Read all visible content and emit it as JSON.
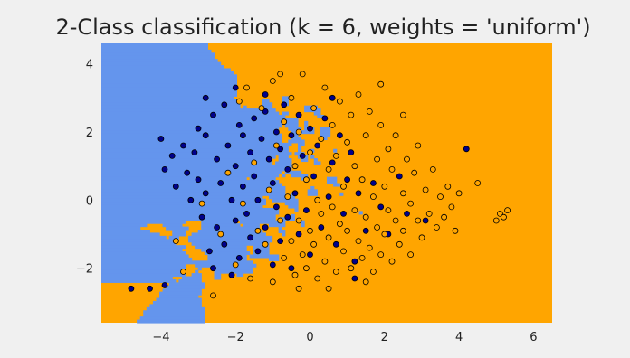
{
  "chart_data": {
    "type": "scatter",
    "title": "2-Class classification (k = 6, weights = 'uniform')",
    "xlabel": "",
    "ylabel": "",
    "xlim": [
      -5.6,
      6.5
    ],
    "ylim": [
      -3.6,
      4.6
    ],
    "xticks": [
      "−4",
      "−2",
      "0",
      "2",
      "4",
      "6"
    ],
    "xtick_values": [
      -4,
      -2,
      0,
      2,
      4,
      6
    ],
    "yticks": [
      "4",
      "2",
      "0",
      "−2"
    ],
    "ytick_values": [
      4,
      2,
      0,
      -2
    ],
    "grid": false,
    "background": "decision regions (k-nearest neighbors)",
    "colors": {
      "figure_bg": "#f0f0f0",
      "class_0_region": "#6495ed",
      "class_1_region": "#ffa500",
      "class_0_points": "#00008b",
      "class_1_points": "#ffa500",
      "point_edge": "#000000"
    },
    "series": [
      {
        "color": "#00008b",
        "points": [
          [
            -4.8,
            -2.6
          ],
          [
            -4.3,
            -2.6
          ],
          [
            -3.9,
            -2.5
          ],
          [
            -4.0,
            1.8
          ],
          [
            -3.9,
            0.9
          ],
          [
            -3.7,
            1.3
          ],
          [
            -3.6,
            0.4
          ],
          [
            -3.4,
            1.6
          ],
          [
            -3.3,
            0.8
          ],
          [
            -3.2,
            0.0
          ],
          [
            -3.1,
            1.4
          ],
          [
            -3.0,
            2.1
          ],
          [
            -3.0,
            0.6
          ],
          [
            -2.9,
            -0.5
          ],
          [
            -2.8,
            1.9
          ],
          [
            -2.8,
            0.2
          ],
          [
            -2.7,
            -1.5
          ],
          [
            -2.6,
            -2.0
          ],
          [
            -2.6,
            2.5
          ],
          [
            -2.5,
            1.2
          ],
          [
            -2.5,
            -0.8
          ],
          [
            -2.4,
            0.5
          ],
          [
            -2.3,
            -1.3
          ],
          [
            -2.3,
            2.8
          ],
          [
            -2.2,
            1.6
          ],
          [
            -2.1,
            0.0
          ],
          [
            -2.1,
            -2.2
          ],
          [
            -2.0,
            1.0
          ],
          [
            -2.0,
            -0.6
          ],
          [
            -1.9,
            2.2
          ],
          [
            -1.9,
            -1.7
          ],
          [
            -1.8,
            0.4
          ],
          [
            -1.8,
            1.9
          ],
          [
            -1.7,
            -0.4
          ],
          [
            -1.6,
            -1.1
          ],
          [
            -1.6,
            1.4
          ],
          [
            -1.5,
            2.4
          ],
          [
            -1.5,
            0.7
          ],
          [
            -1.4,
            -1.5
          ],
          [
            -1.4,
            0.0
          ],
          [
            -1.3,
            1.8
          ],
          [
            -1.2,
            -0.8
          ],
          [
            -1.2,
            2.6
          ],
          [
            -1.1,
            1.2
          ],
          [
            -1.0,
            -1.9
          ],
          [
            -1.0,
            0.5
          ],
          [
            -0.9,
            2.0
          ],
          [
            -0.9,
            -0.2
          ],
          [
            -0.8,
            -1.2
          ],
          [
            -0.8,
            1.5
          ],
          [
            -0.7,
            2.8
          ],
          [
            -0.6,
            -0.5
          ],
          [
            -0.6,
            0.9
          ],
          [
            -0.5,
            -2.0
          ],
          [
            -0.5,
            1.9
          ],
          [
            -0.4,
            0.2
          ],
          [
            -0.3,
            2.5
          ],
          [
            -0.3,
            -1.0
          ],
          [
            -0.2,
            1.3
          ],
          [
            -0.1,
            -0.3
          ],
          [
            0.0,
            2.1
          ],
          [
            0.0,
            -1.6
          ],
          [
            0.1,
            0.7
          ],
          [
            0.2,
            1.6
          ],
          [
            0.3,
            -0.8
          ],
          [
            0.4,
            2.4
          ],
          [
            0.5,
            0.1
          ],
          [
            0.6,
            1.1
          ],
          [
            0.7,
            -1.3
          ],
          [
            0.8,
            1.9
          ],
          [
            0.9,
            -0.4
          ],
          [
            1.0,
            0.6
          ],
          [
            1.1,
            1.4
          ],
          [
            1.2,
            -1.8
          ],
          [
            1.3,
            0.2
          ],
          [
            1.5,
            -0.9
          ],
          [
            1.7,
            0.5
          ],
          [
            1.9,
            -0.2
          ],
          [
            2.1,
            -1.0
          ],
          [
            2.4,
            0.7
          ],
          [
            2.6,
            -0.4
          ],
          [
            3.1,
            -0.6
          ],
          [
            4.2,
            1.5
          ],
          [
            -2.8,
            3.0
          ],
          [
            -2.0,
            3.3
          ],
          [
            -1.2,
            3.1
          ],
          [
            0.6,
            3.0
          ],
          [
            1.2,
            -2.3
          ]
        ]
      },
      {
        "color": "#ffa500",
        "points": [
          [
            -3.6,
            -1.2
          ],
          [
            -3.4,
            -2.1
          ],
          [
            -2.9,
            -0.1
          ],
          [
            -2.6,
            -2.8
          ],
          [
            -2.4,
            -1.0
          ],
          [
            -2.2,
            0.8
          ],
          [
            -2.0,
            -1.9
          ],
          [
            -1.9,
            2.9
          ],
          [
            -1.8,
            -0.1
          ],
          [
            -1.7,
            3.3
          ],
          [
            -1.6,
            -2.3
          ],
          [
            -1.5,
            1.1
          ],
          [
            -1.4,
            -0.9
          ],
          [
            -1.3,
            2.7
          ],
          [
            -1.2,
            -1.3
          ],
          [
            -1.1,
            0.3
          ],
          [
            -1.0,
            3.5
          ],
          [
            -1.0,
            -2.4
          ],
          [
            -0.9,
            1.6
          ],
          [
            -0.8,
            -0.6
          ],
          [
            -0.7,
            2.3
          ],
          [
            -0.7,
            -1.7
          ],
          [
            -0.6,
            0.1
          ],
          [
            -0.5,
            3.0
          ],
          [
            -0.5,
            -1.2
          ],
          [
            -0.4,
            1.0
          ],
          [
            -0.4,
            -2.2
          ],
          [
            -0.3,
            2.0
          ],
          [
            -0.3,
            -0.6
          ],
          [
            -0.2,
            3.7
          ],
          [
            -0.2,
            -1.6
          ],
          [
            -0.1,
            0.6
          ],
          [
            -0.1,
            -2.0
          ],
          [
            0.0,
            1.4
          ],
          [
            0.0,
            -0.9
          ],
          [
            0.1,
            2.7
          ],
          [
            0.1,
            -1.3
          ],
          [
            0.2,
            0.0
          ],
          [
            0.2,
            -2.3
          ],
          [
            0.3,
            1.8
          ],
          [
            0.3,
            -0.4
          ],
          [
            0.4,
            3.3
          ],
          [
            0.4,
            -1.8
          ],
          [
            0.5,
            0.9
          ],
          [
            0.5,
            -1.1
          ],
          [
            0.6,
            2.2
          ],
          [
            0.6,
            -0.2
          ],
          [
            0.7,
            -2.1
          ],
          [
            0.7,
            1.3
          ],
          [
            0.8,
            -0.7
          ],
          [
            0.8,
            2.9
          ],
          [
            0.9,
            -1.5
          ],
          [
            0.9,
            0.4
          ],
          [
            1.0,
            1.7
          ],
          [
            1.0,
            -0.9
          ],
          [
            1.1,
            -2.0
          ],
          [
            1.1,
            2.5
          ],
          [
            1.2,
            -0.3
          ],
          [
            1.2,
            1.0
          ],
          [
            1.3,
            -1.2
          ],
          [
            1.3,
            3.1
          ],
          [
            1.4,
            0.6
          ],
          [
            1.4,
            -1.7
          ],
          [
            1.5,
            1.9
          ],
          [
            1.5,
            -0.5
          ],
          [
            1.6,
            2.6
          ],
          [
            1.6,
            -1.4
          ],
          [
            1.7,
            0.1
          ],
          [
            1.7,
            -2.1
          ],
          [
            1.8,
            1.2
          ],
          [
            1.8,
            -0.8
          ],
          [
            1.9,
            2.2
          ],
          [
            1.9,
            -1.6
          ],
          [
            2.0,
            0.4
          ],
          [
            2.0,
            -1.0
          ],
          [
            2.1,
            1.5
          ],
          [
            2.1,
            -0.3
          ],
          [
            2.2,
            -1.8
          ],
          [
            2.2,
            0.9
          ],
          [
            2.3,
            -0.6
          ],
          [
            2.3,
            1.9
          ],
          [
            2.4,
            -1.3
          ],
          [
            2.5,
            0.2
          ],
          [
            2.5,
            -0.9
          ],
          [
            2.6,
            1.2
          ],
          [
            2.7,
            -0.1
          ],
          [
            2.7,
            -1.6
          ],
          [
            2.8,
            0.8
          ],
          [
            2.9,
            -0.6
          ],
          [
            2.9,
            1.6
          ],
          [
            3.0,
            -1.1
          ],
          [
            3.1,
            0.3
          ],
          [
            3.2,
            -0.4
          ],
          [
            3.3,
            0.9
          ],
          [
            3.4,
            -0.8
          ],
          [
            3.5,
            0.1
          ],
          [
            3.6,
            -0.5
          ],
          [
            3.7,
            0.4
          ],
          [
            3.8,
            -0.2
          ],
          [
            3.9,
            -0.9
          ],
          [
            4.0,
            0.2
          ],
          [
            4.5,
            0.5
          ],
          [
            5.0,
            -0.6
          ],
          [
            5.1,
            -0.4
          ],
          [
            5.2,
            -0.5
          ],
          [
            5.3,
            -0.3
          ],
          [
            -0.8,
            3.7
          ],
          [
            1.9,
            3.4
          ],
          [
            2.5,
            2.5
          ],
          [
            -0.3,
            -2.6
          ],
          [
            0.5,
            -2.6
          ],
          [
            1.5,
            -2.4
          ]
        ]
      }
    ]
  }
}
